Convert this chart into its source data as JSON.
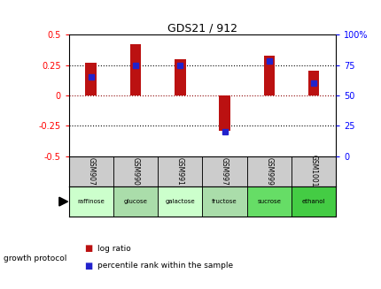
{
  "title": "GDS21 / 912",
  "samples": [
    "GSM907",
    "GSM990",
    "GSM991",
    "GSM997",
    "GSM999",
    "GSM1001"
  ],
  "conditions": [
    "raffinose",
    "glucose",
    "galactose",
    "fructose",
    "sucrose",
    "ethanol"
  ],
  "log_ratios": [
    0.27,
    0.42,
    0.3,
    -0.29,
    0.33,
    0.2
  ],
  "percentile_ranks": [
    65,
    75,
    75,
    20,
    78,
    60
  ],
  "bar_color": "#BB1111",
  "dot_color": "#2222CC",
  "left_yticks": [
    -0.5,
    -0.25,
    0,
    0.25,
    0.5
  ],
  "right_yticks": [
    0,
    25,
    50,
    75,
    100
  ],
  "right_yticklabels": [
    "0",
    "25",
    "50",
    "75",
    "100%"
  ],
  "ylim_left": [
    -0.5,
    0.5
  ],
  "ylim_right": [
    0,
    100
  ],
  "hline_values": [
    -0.25,
    0,
    0.25
  ],
  "condition_colors": [
    "#CCFFCC",
    "#AADDAA",
    "#CCFFCC",
    "#AADDAA",
    "#66DD66",
    "#44CC44"
  ],
  "sample_bg_color": "#CCCCCC",
  "bar_width": 0.25,
  "legend_log_ratio_color": "#BB1111",
  "legend_percentile_color": "#2222CC",
  "dot_size": 4
}
